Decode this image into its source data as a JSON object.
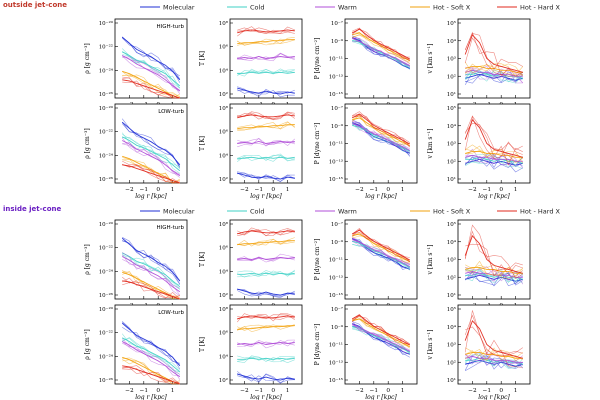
{
  "sections": [
    {
      "title": "outside jet-cone",
      "color": "#c0392b"
    },
    {
      "title": "inside jet-cone",
      "color": "#6a1fc2"
    }
  ],
  "legend": [
    {
      "label": "Molecular",
      "color": "#1f2fd6"
    },
    {
      "label": "Cold",
      "color": "#3fd1c6"
    },
    {
      "label": "Warm",
      "color": "#b14fd8"
    },
    {
      "label": "Hot - Soft X",
      "color": "#f2a20c"
    },
    {
      "label": "Hot - Hard X",
      "color": "#e0281c"
    }
  ],
  "row_labels": [
    "HIGH-turb",
    "LOW-turb",
    "HIGH-turb",
    "LOW-turb"
  ],
  "xlabel": "log r [kpc]",
  "columns": [
    {
      "ylabel": "ρ [g cm⁻³]",
      "ticks": [
        "10⁻²⁰",
        "10⁻²²",
        "10⁻²⁴",
        "10⁻²⁶"
      ]
    },
    {
      "ylabel": "T [K]",
      "ticks": [
        "10⁸",
        "10⁶",
        "10⁴",
        "10²"
      ]
    },
    {
      "ylabel": "P [dyne cm⁻²]",
      "ticks": [
        "10⁻⁷",
        "10⁻⁹",
        "10⁻¹¹",
        "10⁻¹³",
        "10⁻¹⁵"
      ]
    },
    {
      "ylabel": "v [km s⁻¹]",
      "ticks": [
        "10⁵",
        "10⁴",
        "10³",
        "10²",
        "10¹"
      ]
    }
  ],
  "chart_data": {
    "type": "line",
    "description": "4 rows x 4 columns of radial profiles",
    "x": [
      -2.5,
      -2.0,
      -1.5,
      -1.0,
      -0.5,
      0.0,
      0.5,
      1.0,
      1.5
    ],
    "xticks": [
      "-2",
      "-1",
      "0",
      "1"
    ],
    "panels": {
      "density": {
        "series": [
          {
            "name": "Molecular",
            "values": [
              -21.0,
              -21.5,
              -22.0,
              -22.3,
              -22.6,
              -23.0,
              -23.3,
              -23.8,
              -24.5
            ]
          },
          {
            "name": "Cold",
            "values": [
              -22.2,
              -22.5,
              -22.9,
              -23.1,
              -23.4,
              -23.7,
              -24.0,
              -24.5,
              -25.0
            ]
          },
          {
            "name": "Warm",
            "values": [
              -22.5,
              -22.8,
              -23.2,
              -23.5,
              -23.8,
              -24.1,
              -24.5,
              -25.0,
              -25.4
            ]
          },
          {
            "name": "Hot - Soft X",
            "values": [
              -23.8,
              -24.0,
              -24.3,
              -24.6,
              -24.9,
              -25.2,
              -25.5,
              -25.8,
              -26.0
            ]
          },
          {
            "name": "Hot - Hard X",
            "values": [
              -24.5,
              -24.6,
              -24.8,
              -25.0,
              -25.2,
              -25.4,
              -25.6,
              -25.8,
              -26.0
            ]
          }
        ]
      },
      "temperature": {
        "series": [
          {
            "name": "Molecular",
            "values": [
              2.0,
              1.8,
              1.6,
              1.5,
              1.7,
              1.5,
              1.4,
              1.6,
              1.5
            ]
          },
          {
            "name": "Cold",
            "values": [
              3.5,
              3.5,
              3.6,
              3.5,
              3.6,
              3.5,
              3.6,
              3.5,
              3.6
            ]
          },
          {
            "name": "Warm",
            "values": [
              5.0,
              5.1,
              5.0,
              5.2,
              5.0,
              5.1,
              5.2,
              5.1,
              5.2
            ]
          },
          {
            "name": "Hot - Soft X",
            "values": [
              6.5,
              6.6,
              6.6,
              6.7,
              6.7,
              6.8,
              6.8,
              6.9,
              6.9
            ]
          },
          {
            "name": "Hot - Hard X",
            "values": [
              7.6,
              7.8,
              7.9,
              7.8,
              7.7,
              7.7,
              7.8,
              7.9,
              7.8
            ]
          }
        ]
      },
      "pressure": {
        "series": [
          {
            "name": "Molecular",
            "values": [
              -8.5,
              -8.8,
              -9.5,
              -10.0,
              -10.3,
              -10.6,
              -11.0,
              -11.5,
              -11.8
            ]
          },
          {
            "name": "Cold",
            "values": [
              -8.8,
              -9.0,
              -9.4,
              -9.8,
              -10.1,
              -10.4,
              -10.8,
              -11.2,
              -11.6
            ]
          },
          {
            "name": "Warm",
            "values": [
              -8.6,
              -8.9,
              -9.3,
              -9.7,
              -10.0,
              -10.4,
              -10.7,
              -11.1,
              -11.5
            ]
          },
          {
            "name": "Hot - Soft X",
            "values": [
              -8.2,
              -8.0,
              -8.5,
              -9.0,
              -9.4,
              -9.8,
              -10.2,
              -10.6,
              -11.0
            ]
          },
          {
            "name": "Hot - Hard X",
            "values": [
              -8.0,
              -7.6,
              -8.2,
              -8.8,
              -9.2,
              -9.6,
              -10.0,
              -10.4,
              -10.8
            ]
          }
        ]
      },
      "velocity": {
        "series": [
          {
            "name": "Molecular",
            "values": [
              2.0,
              2.1,
              2.2,
              2.1,
              2.0,
              2.1,
              2.0,
              1.9,
              2.0
            ]
          },
          {
            "name": "Cold",
            "values": [
              2.2,
              2.2,
              2.3,
              2.2,
              2.1,
              2.2,
              2.1,
              2.1,
              2.0
            ]
          },
          {
            "name": "Warm",
            "values": [
              2.3,
              2.4,
              2.3,
              2.3,
              2.2,
              2.2,
              2.2,
              2.1,
              2.1
            ]
          },
          {
            "name": "Hot - Soft X",
            "values": [
              2.5,
              2.6,
              2.6,
              2.5,
              2.5,
              2.4,
              2.4,
              2.3,
              2.3
            ]
          },
          {
            "name": "Hot - Hard X",
            "values": [
              3.2,
              4.2,
              3.8,
              3.0,
              2.7,
              2.6,
              2.5,
              2.4,
              2.3
            ]
          }
        ]
      }
    }
  }
}
